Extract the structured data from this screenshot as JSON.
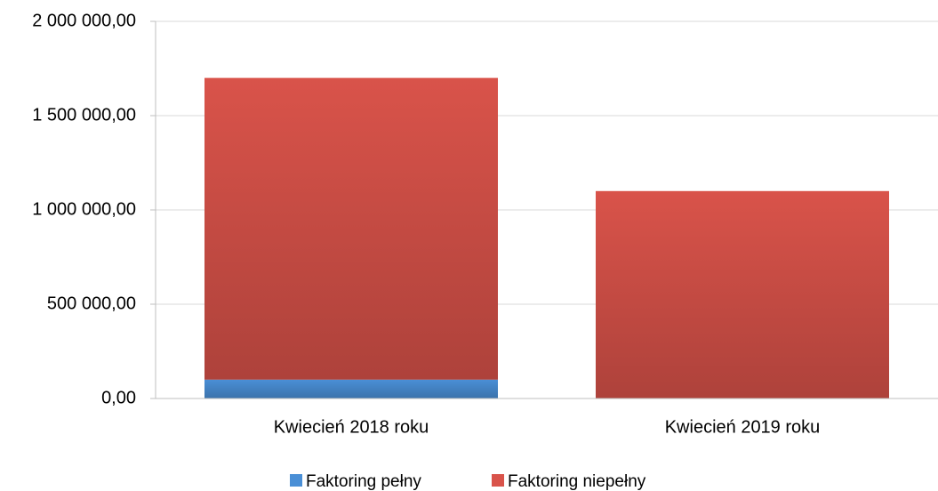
{
  "chart_data": {
    "type": "stacked_bar",
    "categories": [
      "Kwiecień 2018 roku",
      "Kwiecień 2019 roku"
    ],
    "series": [
      {
        "name": "Faktoring pełny",
        "color": "#4a8fd6",
        "values": [
          100000,
          0
        ]
      },
      {
        "name": "Faktoring niepełny",
        "color": "#d9534a",
        "values": [
          1600000,
          1100000
        ]
      }
    ],
    "ylim": [
      0,
      2000000
    ],
    "yticks": [
      {
        "value": 0,
        "label": "0,00"
      },
      {
        "value": 500000,
        "label": "500 000,00"
      },
      {
        "value": 1000000,
        "label": "1 000 000,00"
      },
      {
        "value": 1500000,
        "label": "1 500 000,00"
      },
      {
        "value": 2000000,
        "label": "2 000 000,00"
      }
    ],
    "grid": true,
    "legend": "bottom"
  }
}
